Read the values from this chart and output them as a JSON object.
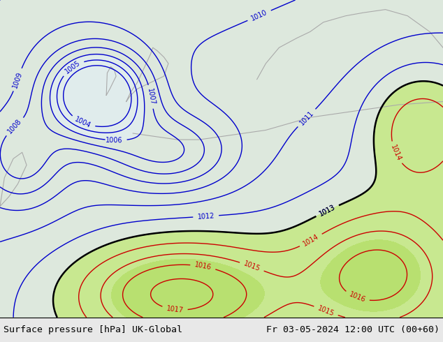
{
  "title_left": "Surface pressure [hPa] UK-Global",
  "title_right": "Fr 03-05-2024 12:00 UTC (00+60)",
  "title_fontsize": 9.5,
  "blue_contour_color": "#0000cc",
  "red_contour_color": "#cc0000",
  "black_contour_color": "#000000",
  "gray_coast_color": "#aaaaaa",
  "contour_linewidth": 1.0,
  "label_fontsize": 7,
  "figsize": [
    6.34,
    4.9
  ],
  "dpi": 100
}
